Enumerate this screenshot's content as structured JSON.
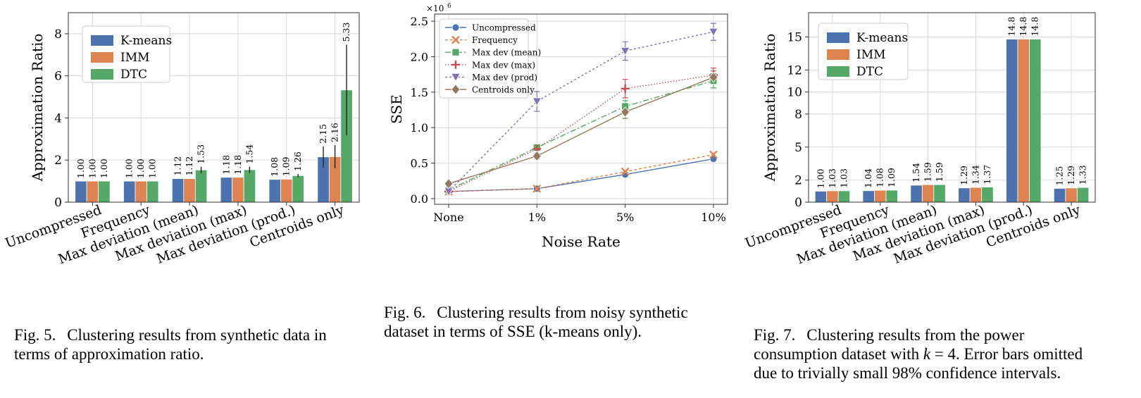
{
  "captions": {
    "fig5": {
      "num": "Fig. 5.",
      "text": "Clustering results from synthetic data in terms of approximation ratio."
    },
    "fig6": {
      "num": "Fig. 6.",
      "text": "Clustering results from noisy synthetic dataset in terms of SSE (k-means only)."
    },
    "fig7": {
      "num": "Fig. 7.",
      "pre": "Clustering results from the power consumption dataset with ",
      "math": "k",
      "post": " = 4. Error bars omitted due to trivially small 98% confidence intervals."
    }
  },
  "colors": {
    "kmeans": "#4c72b0",
    "imm": "#dd8452",
    "dtc": "#55a868",
    "grid": "#d8d8d8"
  },
  "chart_data": [
    {
      "id": "fig5",
      "type": "bar",
      "ylabel": "Approximation Ratio",
      "xlabel": "",
      "ylim": [
        0,
        9
      ],
      "yticks": [
        0,
        2,
        4,
        6,
        8
      ],
      "grid": true,
      "legend": "top-left",
      "categories": [
        "Uncompressed",
        "Frequency",
        "Max deviation (mean)",
        "Max deviation (max)",
        "Max deviation (prod.)",
        "Centroids only"
      ],
      "series": [
        {
          "name": "K-means",
          "values": [
            1.0,
            1.0,
            1.12,
            1.18,
            1.08,
            2.15
          ],
          "labels": [
            "1.00",
            "1.00",
            "1.12",
            "1.18",
            "1.08",
            "2.15"
          ],
          "err": [
            0,
            0,
            0,
            0,
            0,
            0.5
          ]
        },
        {
          "name": "IMM",
          "values": [
            1.0,
            1.0,
            1.12,
            1.18,
            1.09,
            2.16
          ],
          "labels": [
            "1.00",
            "1.00",
            "1.12",
            "1.18",
            "1.09",
            "2.16"
          ],
          "err": [
            0,
            0,
            0,
            0,
            0,
            0.55
          ]
        },
        {
          "name": "DTC",
          "values": [
            1.0,
            1.0,
            1.53,
            1.54,
            1.26,
            5.33
          ],
          "labels": [
            "1.00",
            "1.00",
            "1.53",
            "1.54",
            "1.26",
            "5.33"
          ],
          "err": [
            0,
            0,
            0.15,
            0.15,
            0.08,
            2.15
          ]
        }
      ]
    },
    {
      "id": "fig6",
      "type": "line",
      "xlabel": "Noise Rate",
      "ylabel": "SSE",
      "y_multiplier": "×10",
      "y_exponent": "6",
      "categories": [
        "None",
        "1%",
        "5%",
        "10%"
      ],
      "ylim": [
        -0.08,
        2.6
      ],
      "yticks": [
        0.0,
        0.5,
        1.0,
        1.5,
        2.0,
        2.5
      ],
      "ytick_labels": [
        "0.0",
        "0.5",
        "1.0",
        "1.5",
        "2.0",
        "2.5"
      ],
      "grid": true,
      "legend": "top-left",
      "series": [
        {
          "name": "Uncompressed",
          "values": [
            0.1,
            0.14,
            0.34,
            0.56
          ],
          "err": [
            0,
            0,
            0,
            0
          ],
          "color": "#4c72b0",
          "marker": "circle",
          "dash": ""
        },
        {
          "name": "Frequency",
          "values": [
            0.1,
            0.14,
            0.38,
            0.62
          ],
          "err": [
            0,
            0,
            0,
            0
          ],
          "color": "#dd8452",
          "marker": "x",
          "dash": "4 3"
        },
        {
          "name": "Max dev (mean)",
          "values": [
            0.12,
            0.72,
            1.3,
            1.66
          ],
          "err": [
            0,
            0.03,
            0.08,
            0.1
          ],
          "color": "#55a868",
          "marker": "square",
          "dash": "8 3 2 3"
        },
        {
          "name": "Max dev (max)",
          "values": [
            0.1,
            0.7,
            1.55,
            1.74
          ],
          "err": [
            0,
            0.03,
            0.13,
            0.1
          ],
          "color": "#c44e52",
          "marker": "plus",
          "dash": "1.5 2.5"
        },
        {
          "name": "Max dev (prod)",
          "values": [
            0.1,
            1.37,
            2.08,
            2.35
          ],
          "err": [
            0,
            0.14,
            0.13,
            0.12
          ],
          "color": "#8172b3",
          "marker": "triangle-down",
          "dash": "3 3"
        },
        {
          "name": "Centroids only",
          "values": [
            0.21,
            0.6,
            1.22,
            1.71
          ],
          "err": [
            0,
            0.04,
            0.09,
            0.09
          ],
          "color": "#937860",
          "marker": "diamond",
          "dash": ""
        }
      ]
    },
    {
      "id": "fig7",
      "type": "bar",
      "ylabel": "Approximation Ratio",
      "xlabel": "",
      "ylim": [
        0,
        17.2
      ],
      "yticks": [
        0,
        2,
        5,
        8,
        10,
        12,
        15
      ],
      "grid": true,
      "legend": "top-left",
      "categories": [
        "Uncompressed",
        "Frequency",
        "Max deviation (mean)",
        "Max deviation (max)",
        "Max deviation (prod.)",
        "Centroids only"
      ],
      "series": [
        {
          "name": "K-means",
          "values": [
            1.0,
            1.04,
            1.54,
            1.29,
            14.8,
            1.25
          ],
          "labels": [
            "1.00",
            "1.04",
            "1.54",
            "1.29",
            "14.8",
            "1.25"
          ]
        },
        {
          "name": "IMM",
          "values": [
            1.03,
            1.08,
            1.59,
            1.34,
            14.8,
            1.29
          ],
          "labels": [
            "1.03",
            "1.08",
            "1.59",
            "1.34",
            "14.8",
            "1.29"
          ]
        },
        {
          "name": "DTC",
          "values": [
            1.03,
            1.09,
            1.59,
            1.37,
            14.8,
            1.33
          ],
          "labels": [
            "1.03",
            "1.09",
            "1.59",
            "1.37",
            "14.8",
            "1.33"
          ]
        }
      ]
    }
  ]
}
